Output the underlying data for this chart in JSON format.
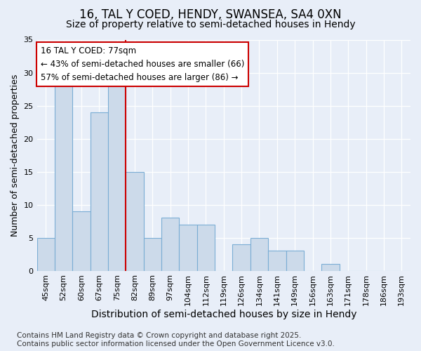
{
  "title1": "16, TAL Y COED, HENDY, SWANSEA, SA4 0XN",
  "title2": "Size of property relative to semi-detached houses in Hendy",
  "xlabel": "Distribution of semi-detached houses by size in Hendy",
  "ylabel": "Number of semi-detached properties",
  "categories": [
    "45sqm",
    "52sqm",
    "60sqm",
    "67sqm",
    "75sqm",
    "82sqm",
    "89sqm",
    "97sqm",
    "104sqm",
    "112sqm",
    "119sqm",
    "126sqm",
    "134sqm",
    "141sqm",
    "149sqm",
    "156sqm",
    "163sqm",
    "171sqm",
    "178sqm",
    "186sqm",
    "193sqm"
  ],
  "values": [
    5,
    28,
    9,
    24,
    28,
    15,
    5,
    8,
    7,
    7,
    0,
    4,
    5,
    3,
    3,
    0,
    1,
    0,
    0,
    0,
    0
  ],
  "bar_color": "#ccdaea",
  "bar_edge_color": "#7aadd4",
  "vline_color": "#cc0000",
  "vline_index": 4.5,
  "annotation_title": "16 TAL Y COED: 77sqm",
  "annotation_line1": "← 43% of semi-detached houses are smaller (66)",
  "annotation_line2": "57% of semi-detached houses are larger (86) →",
  "annotation_box_color": "#cc0000",
  "ylim": [
    0,
    35
  ],
  "yticks": [
    0,
    5,
    10,
    15,
    20,
    25,
    30,
    35
  ],
  "bg_color": "#e8eef8",
  "footer": "Contains HM Land Registry data © Crown copyright and database right 2025.\nContains public sector information licensed under the Open Government Licence v3.0.",
  "title1_fontsize": 12,
  "title2_fontsize": 10,
  "xlabel_fontsize": 10,
  "ylabel_fontsize": 9,
  "tick_fontsize": 8,
  "footer_fontsize": 7.5,
  "ann_fontsize": 8.5
}
